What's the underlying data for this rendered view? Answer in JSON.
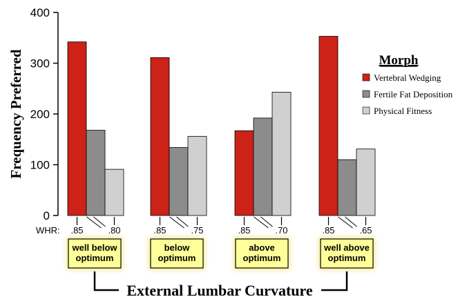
{
  "chart_data": {
    "type": "bar",
    "ylabel": "Frequency Preferred",
    "xlabel": "External Lumbar Curvature",
    "ylim": [
      0,
      400
    ],
    "yticks": [
      0,
      100,
      200,
      300,
      400
    ],
    "legend": {
      "title": "Morph",
      "placement": "right"
    },
    "whr_label": "WHR:",
    "categories": [
      "well below optimum",
      "below optimum",
      "above optimum",
      "well above optimum"
    ],
    "category_lines": [
      [
        "well below",
        "optimum"
      ],
      [
        "below",
        "optimum"
      ],
      [
        "above",
        "optimum"
      ],
      [
        "well above",
        "optimum"
      ]
    ],
    "whr_pairs": [
      [
        ".85",
        ".80"
      ],
      [
        ".85",
        ".75"
      ],
      [
        ".85",
        ".70"
      ],
      [
        ".85",
        ".65"
      ]
    ],
    "series": [
      {
        "name": "Vertebral Wedging",
        "color": "#cc2218",
        "values": [
          342,
          311,
          167,
          353
        ]
      },
      {
        "name": "Fertile Fat Deposition",
        "color": "#8c8c8c",
        "values": [
          168,
          134,
          192,
          110
        ]
      },
      {
        "name": "Physical Fitness",
        "color": "#d0d0d0",
        "values": [
          91,
          156,
          243,
          131
        ]
      }
    ],
    "colors": {
      "box_fill": "#ffff99",
      "box_glow": "#f5f0b0"
    }
  }
}
